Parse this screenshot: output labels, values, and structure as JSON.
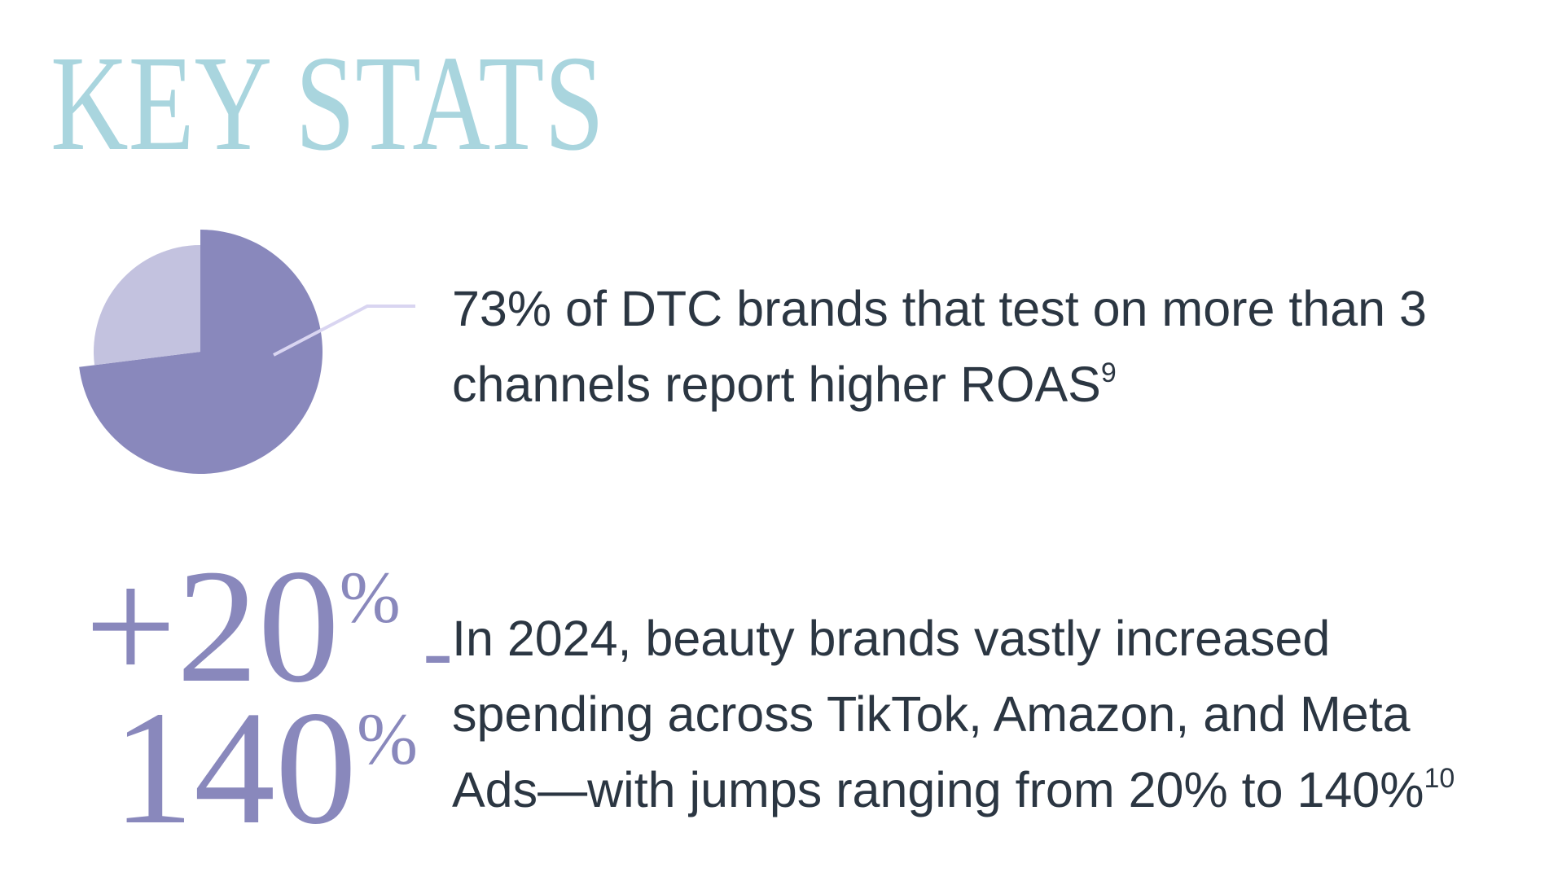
{
  "header": {
    "title": "KEY STATS"
  },
  "stats": [
    {
      "percent": 73,
      "lines": [
        "% of DTC brands that test on more than 3",
        "channels report higher ROAS"
      ],
      "footnote": "9"
    },
    {
      "figure": [
        {
          "main": "+20",
          "sup": "%",
          "tail": " -"
        },
        {
          "main": "140",
          "sup": "%"
        }
      ],
      "lines": [
        "In 2024, beauty brands vastly increased",
        "spending across TikTok, Amazon, and Meta",
        "Ads—with jumps ranging from 20% to 140%"
      ],
      "footnote": "10"
    }
  ]
}
